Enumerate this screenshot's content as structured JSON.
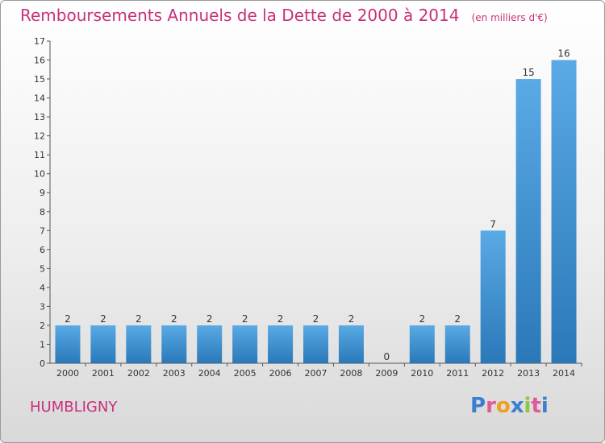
{
  "header": {
    "title": "Remboursements Annuels de la Dette de 2000 à 2014",
    "unit": "(en milliers d'€)"
  },
  "footer": {
    "commune": "HUMBLIGNY",
    "logo": "Proxiti",
    "logo_colors": [
      "#3a7fd0",
      "#e05a9a",
      "#f0a020",
      "#3a7fd0",
      "#8cc63f",
      "#e05a9a",
      "#3a7fd0"
    ]
  },
  "chart_data": {
    "type": "bar",
    "title": "Remboursements Annuels de la Dette de 2000 à 2014",
    "subtitle": "(en milliers d'€)",
    "categories": [
      "2000",
      "2001",
      "2002",
      "2003",
      "2004",
      "2005",
      "2006",
      "2007",
      "2008",
      "2009",
      "2010",
      "2011",
      "2012",
      "2013",
      "2014"
    ],
    "values": [
      2,
      2,
      2,
      2,
      2,
      2,
      2,
      2,
      2,
      0,
      2,
      2,
      7,
      15,
      16
    ],
    "ylim": [
      0,
      17
    ],
    "yticks": [
      0,
      1,
      2,
      3,
      4,
      5,
      6,
      7,
      8,
      9,
      10,
      11,
      12,
      13,
      14,
      15,
      16,
      17
    ],
    "grid": false,
    "bar_color_top": "#5aaae6",
    "bar_color_bottom": "#2a78b8"
  }
}
